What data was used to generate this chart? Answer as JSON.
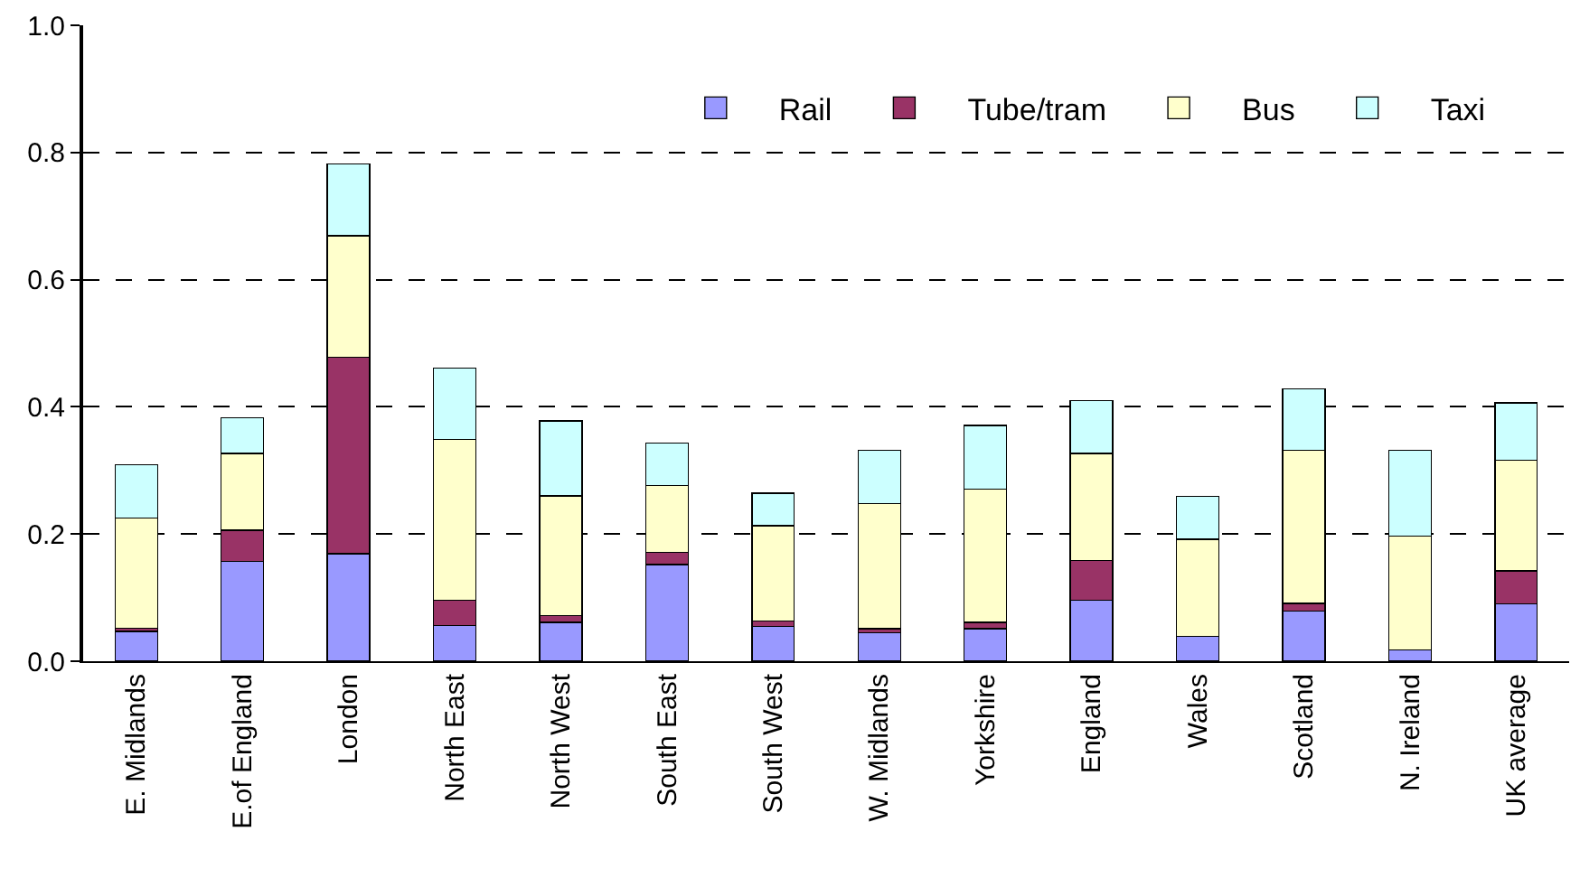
{
  "chart_data": {
    "type": "bar",
    "stacked": true,
    "categories": [
      "E. Midlands",
      "E.of England",
      "London",
      "North East",
      "North West",
      "South East",
      "South West",
      "W. Midlands",
      "Yorkshire",
      "England",
      "Wales",
      "Scotland",
      "N. Ireland",
      "UK average"
    ],
    "series": [
      {
        "name": "Rail",
        "color": "#9999ff",
        "values": [
          0.047,
          0.157,
          0.169,
          0.056,
          0.061,
          0.152,
          0.055,
          0.045,
          0.051,
          0.096,
          0.039,
          0.079,
          0.018,
          0.09
        ]
      },
      {
        "name": "Tube/tram",
        "color": "#993366",
        "values": [
          0.005,
          0.049,
          0.309,
          0.04,
          0.011,
          0.019,
          0.008,
          0.006,
          0.01,
          0.062,
          0,
          0.012,
          0,
          0.052
        ]
      },
      {
        "name": "Bus",
        "color": "#ffffcc",
        "values": [
          0.173,
          0.121,
          0.191,
          0.253,
          0.188,
          0.105,
          0.15,
          0.197,
          0.21,
          0.169,
          0.153,
          0.241,
          0.179,
          0.174
        ]
      },
      {
        "name": "Taxi",
        "color": "#ccffff",
        "values": [
          0.084,
          0.056,
          0.113,
          0.112,
          0.118,
          0.067,
          0.051,
          0.084,
          0.1,
          0.083,
          0.067,
          0.096,
          0.135,
          0.09
        ]
      }
    ],
    "ylim": [
      0,
      1.0
    ],
    "yticks": [
      {
        "value": 0,
        "label": "0.0"
      },
      {
        "value": 0.2,
        "label": "0.2"
      },
      {
        "value": 0.4,
        "label": "0.4"
      },
      {
        "value": 0.6,
        "label": "0.6"
      },
      {
        "value": 0.8,
        "label": "0.8"
      },
      {
        "value": 1.0,
        "label": "1.0"
      }
    ],
    "grid": "y",
    "legend": "top right"
  }
}
